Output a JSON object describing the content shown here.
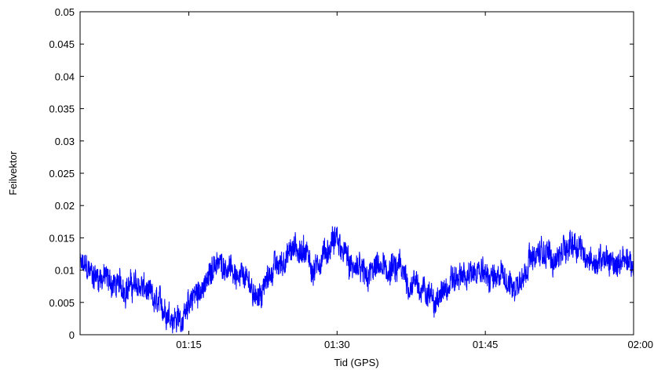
{
  "chart_data": {
    "type": "line",
    "title": "",
    "xlabel": "Tid (GPS)",
    "ylabel": "Feilvektor",
    "xlim": [
      "01:04",
      "02:00"
    ],
    "ylim": [
      0,
      0.05
    ],
    "x_ticks": [
      "01:15",
      "01:30",
      "01:45",
      "02:00"
    ],
    "y_ticks": [
      "0",
      "0.005",
      "0.01",
      "0.015",
      "0.02",
      "0.025",
      "0.03",
      "0.035",
      "0.04",
      "0.045",
      "0.05"
    ],
    "grid": false,
    "legend": "none",
    "series": [
      {
        "color": "#0000ff",
        "x": [
          "01:04",
          "01:06",
          "01:08",
          "01:10",
          "01:12",
          "01:14",
          "01:16",
          "01:18",
          "01:20",
          "01:22",
          "01:24",
          "01:26",
          "01:28",
          "01:30",
          "01:32",
          "01:34",
          "01:36",
          "01:38",
          "01:40",
          "01:42",
          "01:44",
          "01:46",
          "01:48",
          "01:50",
          "01:52",
          "01:54",
          "01:56",
          "01:58",
          "02:00"
        ],
        "y": [
          0.0105,
          0.009,
          0.0075,
          0.0075,
          0.0045,
          0.0025,
          0.0065,
          0.0115,
          0.0095,
          0.0065,
          0.011,
          0.013,
          0.0105,
          0.0145,
          0.0095,
          0.01,
          0.01,
          0.0075,
          0.0055,
          0.0085,
          0.0095,
          0.009,
          0.0075,
          0.0125,
          0.012,
          0.0145,
          0.011,
          0.0115,
          0.0105
        ],
        "noise_amplitude": 0.0022
      }
    ]
  }
}
